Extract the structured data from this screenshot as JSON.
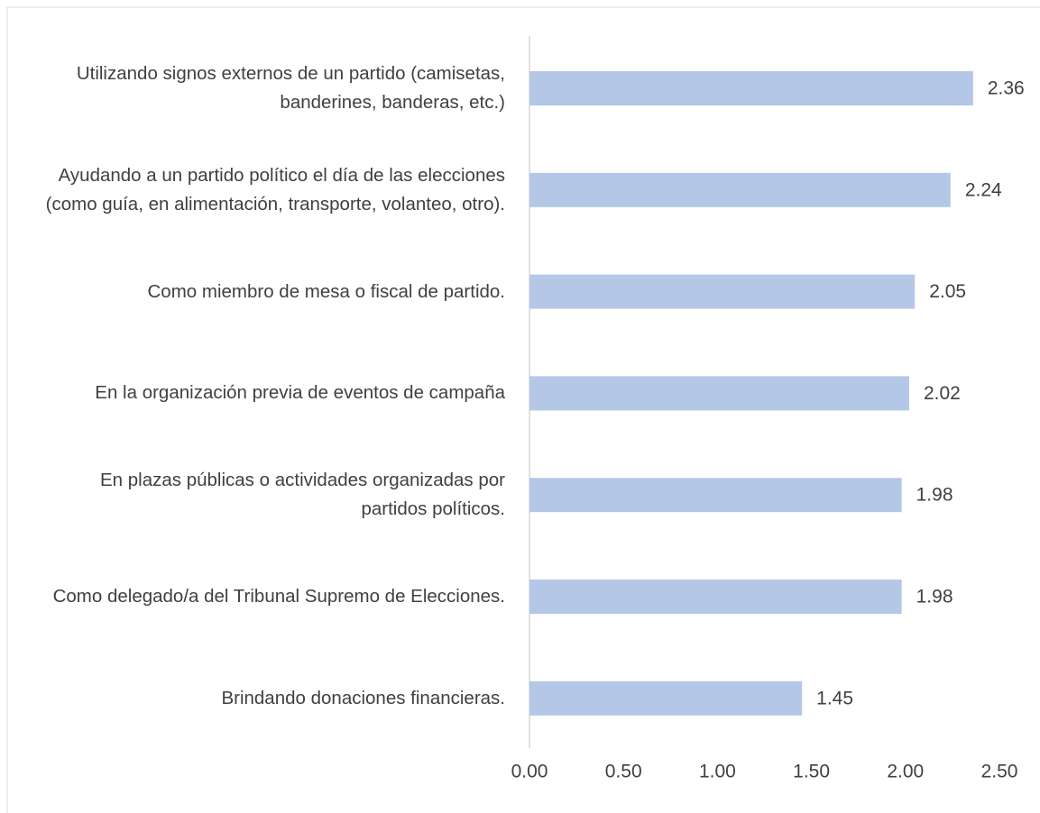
{
  "chart_data": {
    "type": "bar",
    "orientation": "horizontal",
    "categories": [
      "Utilizando signos externos de un partido (camisetas, banderines, banderas, etc.)",
      "Ayudando a un partido político el día de las elecciones (como guía, en alimentación, transporte, volanteo, otro).",
      "Como miembro de mesa o fiscal de partido.",
      "En la organización previa de eventos de campaña",
      "En plazas públicas o actividades organizadas por partidos políticos.",
      "Como delegado/a del Tribunal Supremo de Elecciones.",
      "Brindando donaciones financieras."
    ],
    "values": [
      2.36,
      2.24,
      2.05,
      2.02,
      1.98,
      1.98,
      1.45
    ],
    "color": "#b4c7e7",
    "xlim": [
      0,
      2.5
    ],
    "xticks": [
      {
        "value": 0,
        "label": "0.00"
      },
      {
        "value": 0.5,
        "label": "0.50"
      },
      {
        "value": 1,
        "label": "1.00"
      },
      {
        "value": 1.5,
        "label": "1.50"
      },
      {
        "value": 2,
        "label": "2.00"
      },
      {
        "value": 2.5,
        "label": "2.50"
      }
    ]
  }
}
